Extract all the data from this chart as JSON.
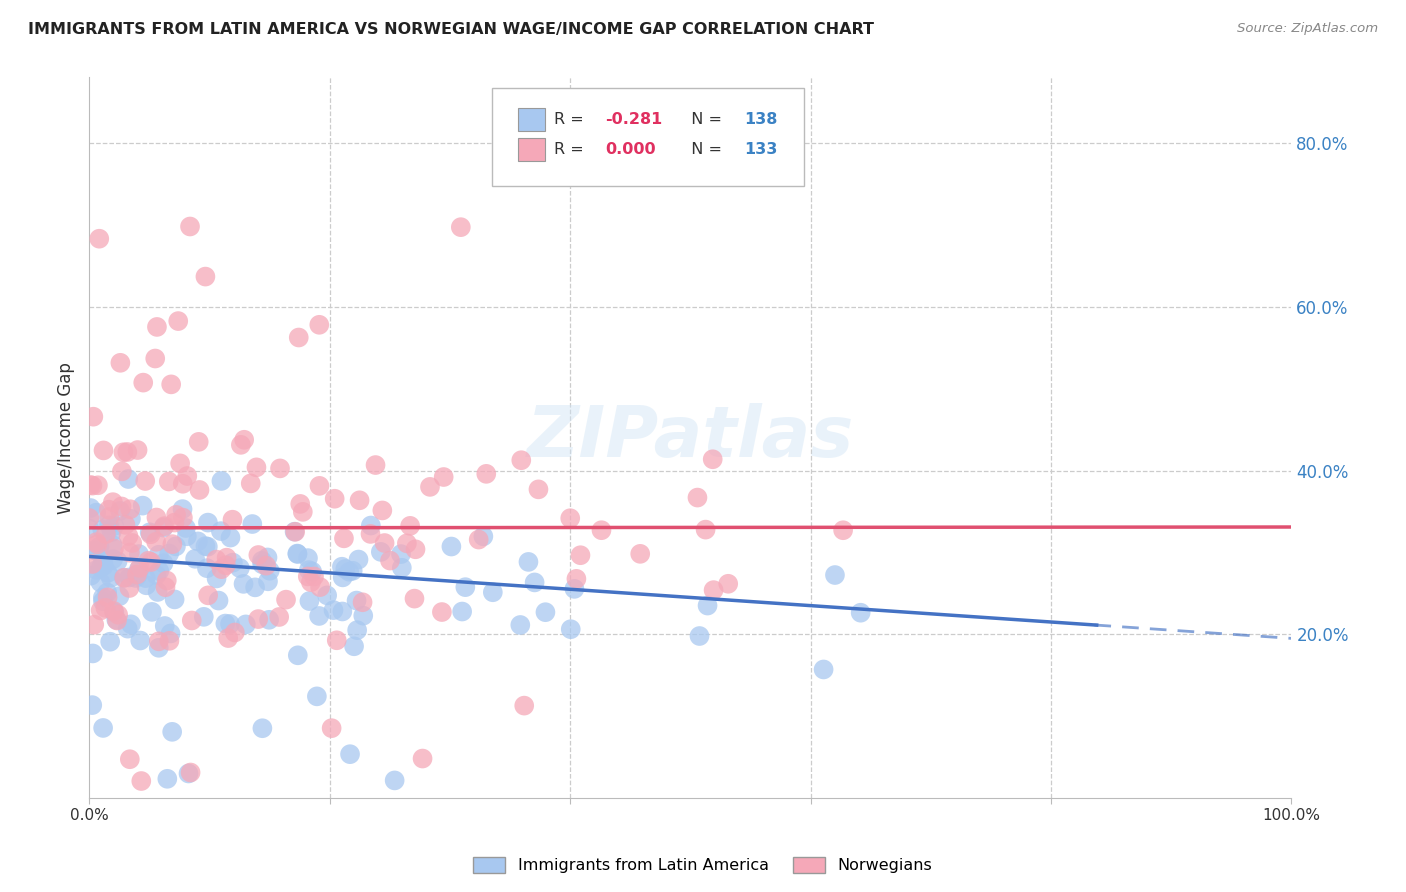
{
  "title": "IMMIGRANTS FROM LATIN AMERICA VS NORWEGIAN WAGE/INCOME GAP CORRELATION CHART",
  "source": "Source: ZipAtlas.com",
  "ylabel": "Wage/Income Gap",
  "right_yticks": [
    "80.0%",
    "60.0%",
    "40.0%",
    "20.0%"
  ],
  "right_ytick_vals": [
    0.8,
    0.6,
    0.4,
    0.2
  ],
  "legend_bottom_blue": "Immigrants from Latin America",
  "legend_bottom_pink": "Norwegians",
  "blue_color": "#a8c8f0",
  "pink_color": "#f5a8b8",
  "blue_line_color": "#4472c4",
  "pink_line_color": "#e05070",
  "watermark": "ZIPatlas",
  "blue_trend_slope": -0.1,
  "blue_trend_intercept": 0.295,
  "pink_trend_slope": 0.001,
  "pink_trend_intercept": 0.33,
  "xmin": 0.0,
  "xmax": 1.0,
  "ymin": 0.0,
  "ymax": 0.88,
  "grid_color": "#cccccc",
  "title_color": "#222222",
  "source_color": "#888888",
  "r_value_color": "#e03060",
  "n_value_color": "#3b82c4",
  "legend_r_blue": "-0.281",
  "legend_n_blue": "138",
  "legend_r_pink": "0.000",
  "legend_n_pink": "133"
}
